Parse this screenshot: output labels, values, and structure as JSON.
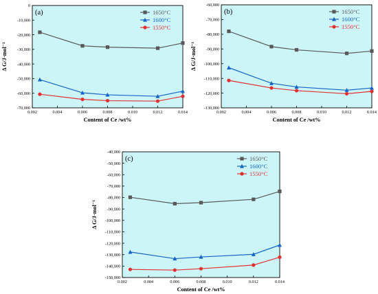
{
  "chart_data": [
    {
      "type": "line",
      "panel_label": "(a)",
      "xlabel": "Content of Ce /wt%",
      "ylabel": "Δ G/J·mol⁻¹",
      "xlim": [
        0.002,
        0.014
      ],
      "ylim": [
        -70000,
        0
      ],
      "xticks": [
        0.002,
        0.004,
        0.006,
        0.008,
        0.01,
        0.012,
        0.014
      ],
      "xtick_labels": [
        "0.002",
        "0.004",
        "0.006",
        "0.008",
        "0.010",
        "0.012",
        "0.014"
      ],
      "yticks": [
        0,
        -10000,
        -20000,
        -30000,
        -40000,
        -50000,
        -60000,
        -70000
      ],
      "ytick_labels": [
        "0",
        "-10,000",
        "-20,000",
        "-30,000",
        "-40,000",
        "-50,000",
        "-60,000",
        "-70,000"
      ],
      "x": [
        0.0026,
        0.006,
        0.008,
        0.012,
        0.014
      ],
      "series": [
        {
          "name": "1650°C",
          "values": [
            -18300,
            -27600,
            -28500,
            -29200,
            -25700
          ]
        },
        {
          "name": "1600°C",
          "values": [
            -50700,
            -59700,
            -61100,
            -62100,
            -58600
          ]
        },
        {
          "name": "1550°C",
          "values": [
            -60700,
            -64200,
            -65100,
            -65400,
            -62100
          ]
        }
      ],
      "legend_position": "top-right",
      "grid": false
    },
    {
      "type": "line",
      "panel_label": "(b)",
      "xlabel": "Content of Ce /wt%",
      "ylabel": "Δ G/J·mol⁻¹",
      "xlim": [
        0.002,
        0.014
      ],
      "ylim": [
        -130000,
        -60000
      ],
      "xticks": [
        0.002,
        0.004,
        0.006,
        0.008,
        0.01,
        0.012,
        0.014
      ],
      "xtick_labels": [
        "0.002",
        "0.004",
        "0.006",
        "0.008",
        "0.010",
        "0.012",
        "0.014"
      ],
      "yticks": [
        -60000,
        -70000,
        -80000,
        -90000,
        -100000,
        -110000,
        -120000,
        -130000
      ],
      "ytick_labels": [
        "-60,000",
        "-70,000",
        "-80,000",
        "-90,000",
        "-100,000",
        "-110,000",
        "-120,000",
        "-130,000"
      ],
      "x": [
        0.0026,
        0.006,
        0.008,
        0.012,
        0.014
      ],
      "series": [
        {
          "name": "1650°C",
          "values": [
            -78000,
            -88400,
            -90600,
            -93000,
            -91400
          ]
        },
        {
          "name": "1600°C",
          "values": [
            -102700,
            -113300,
            -115800,
            -118000,
            -116500
          ]
        },
        {
          "name": "1550°C",
          "values": [
            -111400,
            -116500,
            -118300,
            -120400,
            -118800
          ]
        }
      ],
      "legend_position": "top-right",
      "grid": false
    },
    {
      "type": "line",
      "panel_label": "(c)",
      "xlabel": "Content of Ce /wt%",
      "ylabel": "Δ G/J·mol⁻¹",
      "xlim": [
        0.002,
        0.014
      ],
      "ylim": [
        -150000,
        -40000
      ],
      "xticks": [
        0.002,
        0.004,
        0.006,
        0.008,
        0.01,
        0.012,
        0.014
      ],
      "xtick_labels": [
        "0.002",
        "0.004",
        "0.006",
        "0.008",
        "0.010",
        "0.012",
        "0.014"
      ],
      "yticks": [
        -40000,
        -50000,
        -60000,
        -70000,
        -80000,
        -90000,
        -100000,
        -110000,
        -120000,
        -130000,
        -140000,
        -150000
      ],
      "ytick_labels": [
        "-40,000",
        "-50,000",
        "-60,000",
        "-70,000",
        "-80,000",
        "-90,000",
        "-100,000",
        "-110,000",
        "-120,000",
        "-130,000",
        "-140,000",
        "-150,000"
      ],
      "x": [
        0.0026,
        0.006,
        0.008,
        0.012,
        0.014
      ],
      "series": [
        {
          "name": "1650°C",
          "values": [
            -79800,
            -85400,
            -84500,
            -81600,
            -74600
          ]
        },
        {
          "name": "1600°C",
          "values": [
            -127700,
            -133500,
            -132000,
            -129700,
            -121600
          ]
        },
        {
          "name": "1550°C",
          "values": [
            -142900,
            -143500,
            -142300,
            -139100,
            -132200
          ]
        }
      ],
      "legend_position": "top-right",
      "grid": false
    }
  ],
  "series_style": {
    "1650°C": {
      "color": "#595959",
      "marker": "square"
    },
    "1600°C": {
      "color": "#1565c8",
      "marker": "triangle"
    },
    "1550°C": {
      "color": "#e52f2f",
      "marker": "circle"
    }
  },
  "plot_background": "#ccf5f8"
}
